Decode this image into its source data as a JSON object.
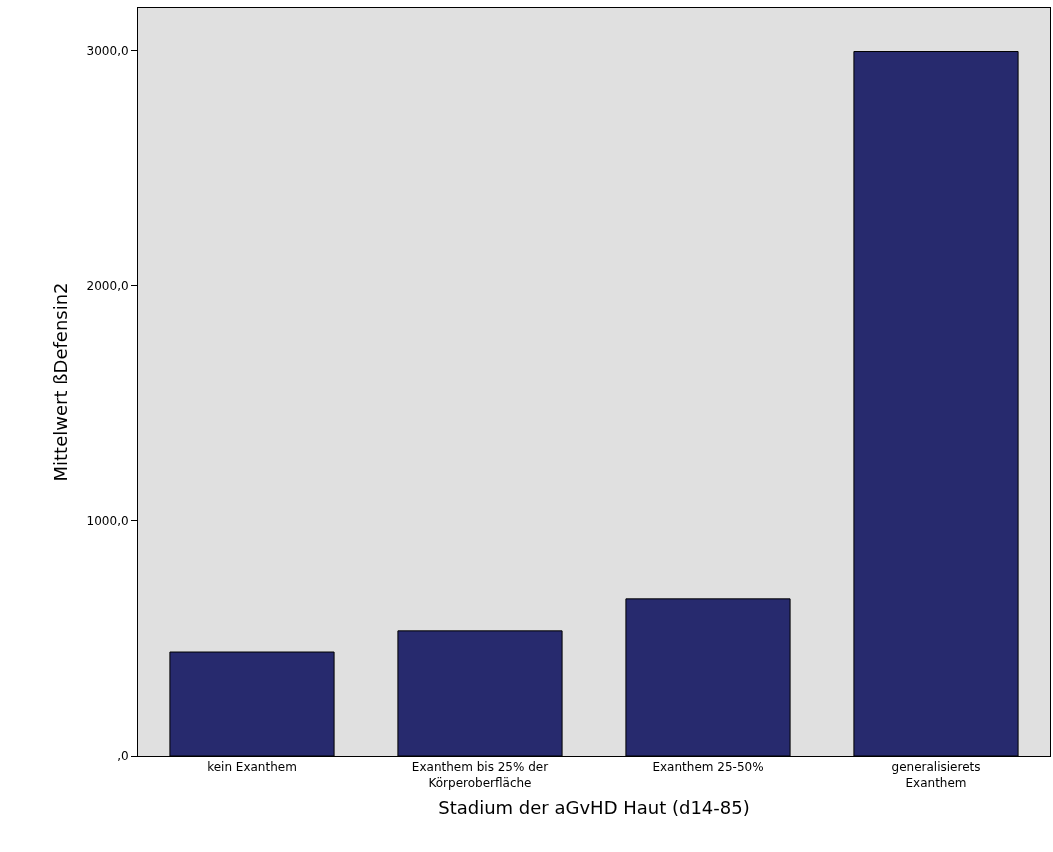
{
  "chart_data": {
    "type": "bar",
    "xlabel": "Stadium der aGvHD Haut (d14-85)",
    "ylabel": "Mittelwert ßDefensin2",
    "categories": [
      "kein Exanthem",
      "Exanthem bis 25% der\nKörperoberfläche",
      "Exanthem 25-50%",
      "generalisierets\nExanthem"
    ],
    "values": [
      442,
      532,
      668,
      2995
    ],
    "color": "#272a6e",
    "ylim": [
      0,
      3180
    ],
    "yticks": [
      {
        "value": 0,
        "label": ",0"
      },
      {
        "value": 1000,
        "label": "1000,0"
      },
      {
        "value": 2000,
        "label": "2000,0"
      },
      {
        "value": 3000,
        "label": "3000,0"
      }
    ],
    "grid": false,
    "legend": false
  }
}
